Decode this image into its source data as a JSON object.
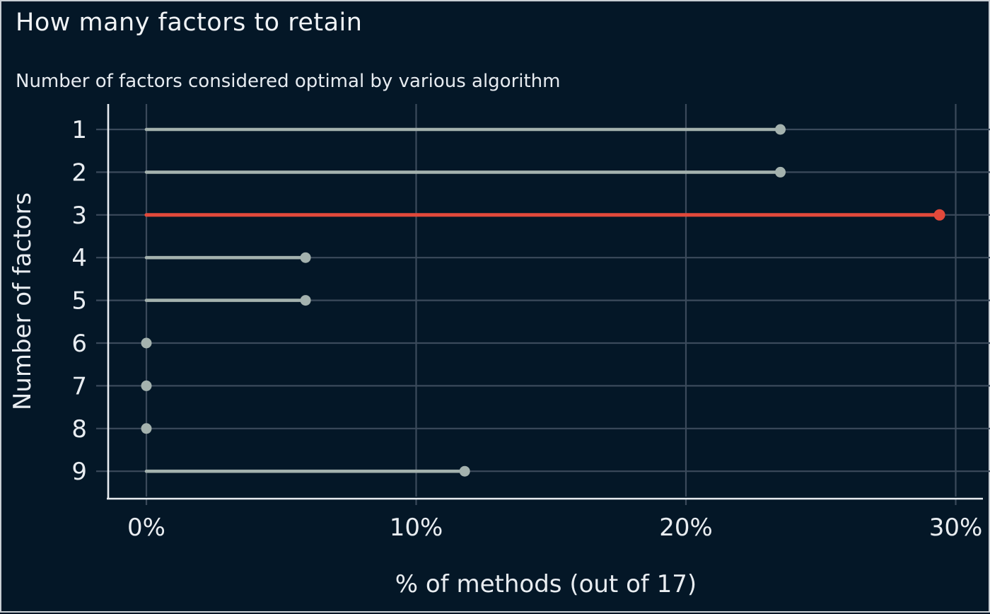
{
  "chart_data": {
    "type": "bar",
    "subtype": "horizontal-lollipop",
    "title": "How many factors to retain",
    "subtitle": "Number of factors considered optimal by various algorithm",
    "xlabel": "% of methods (out of 17)",
    "ylabel": "Number of factors",
    "categories": [
      "1",
      "2",
      "3",
      "4",
      "5",
      "6",
      "7",
      "8",
      "9"
    ],
    "values": [
      23.5,
      23.5,
      29.4,
      5.9,
      5.9,
      0,
      0,
      0,
      11.8
    ],
    "highlight_category": "3",
    "highlight_value": 29.4,
    "x_ticks": [
      {
        "value": 0,
        "label": "0%"
      },
      {
        "value": 10,
        "label": "10%"
      },
      {
        "value": 20,
        "label": "20%"
      },
      {
        "value": 30,
        "label": "30%"
      }
    ],
    "xlim": [
      0,
      31.3
    ],
    "grid": "on",
    "legend": "none",
    "colors": {
      "background": "#041727",
      "stem": "#a4b2ae",
      "highlight": "#e2493b",
      "grid": "#3b4a5b",
      "axis": "#e9edf1",
      "text": "#e9edf1",
      "frame_border": "#c9ced4"
    }
  }
}
